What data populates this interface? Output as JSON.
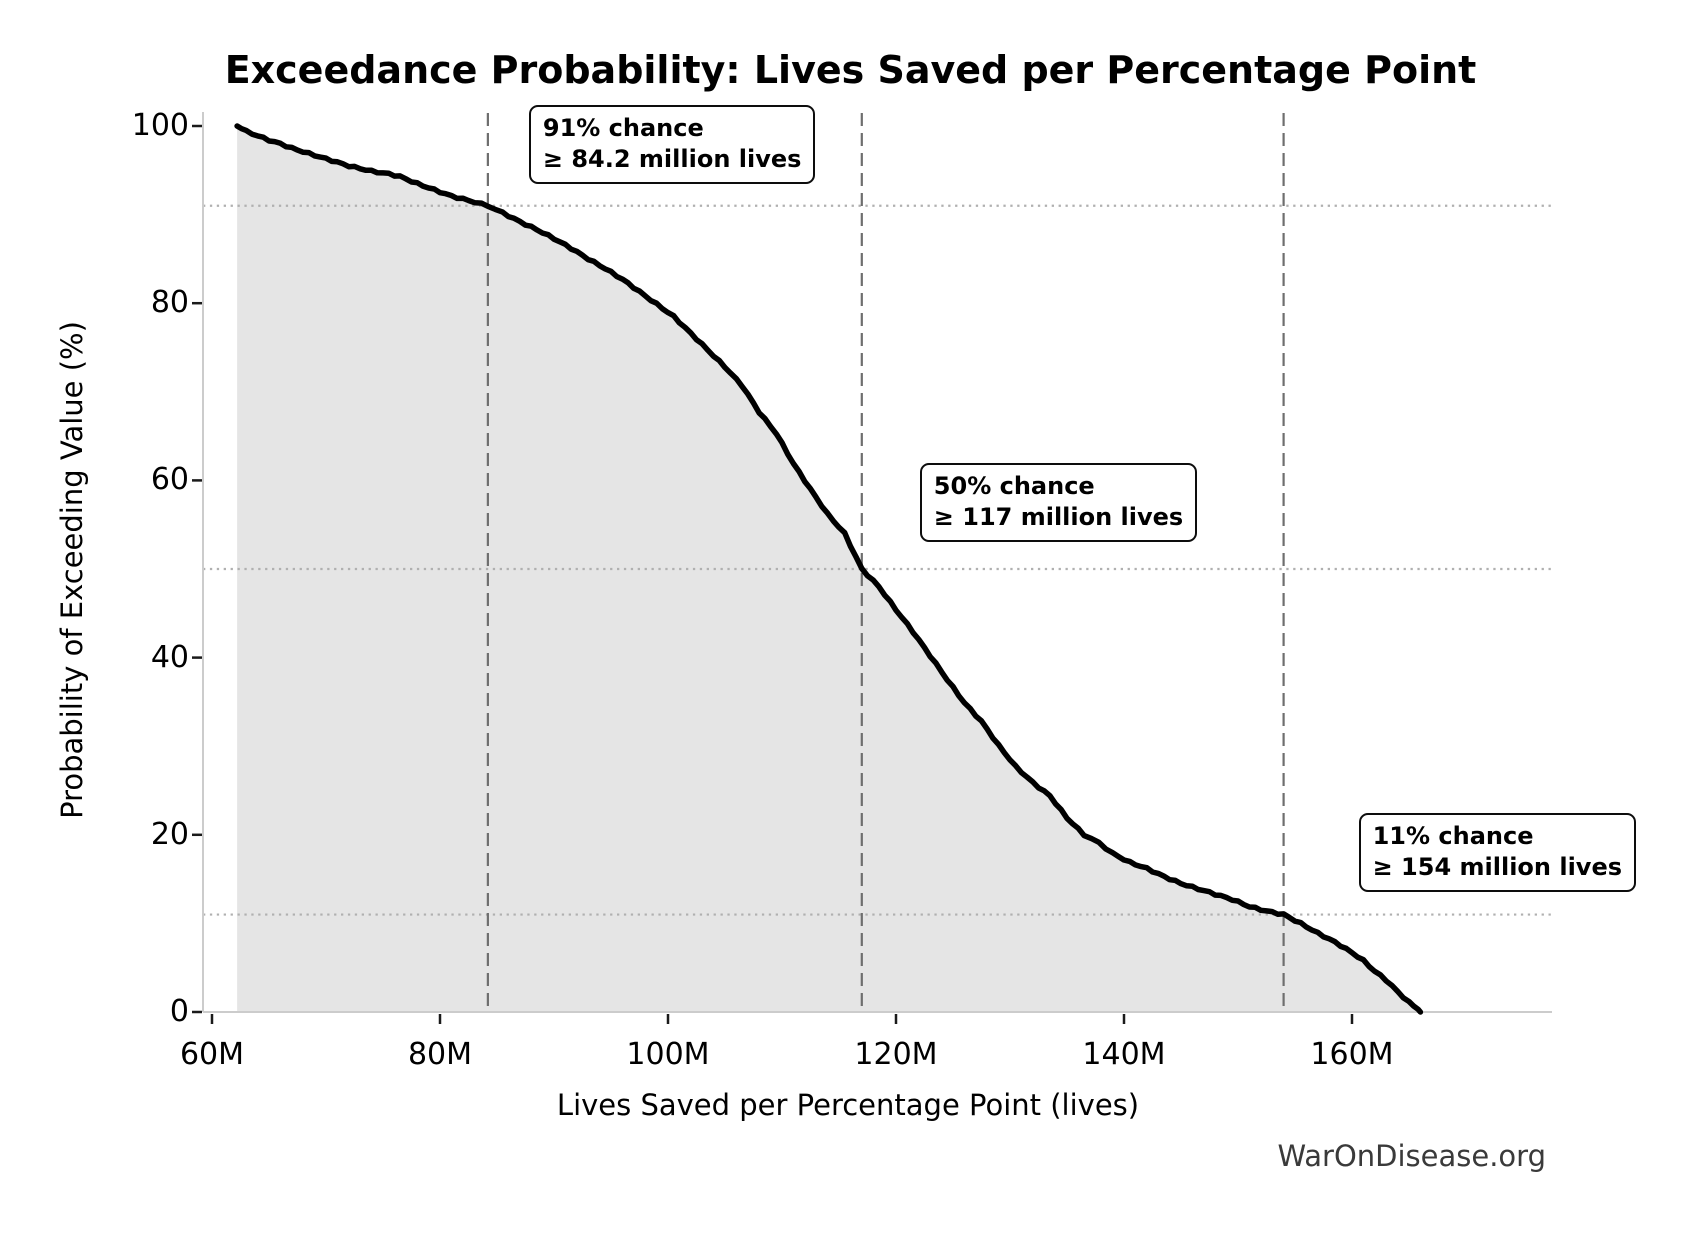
{
  "chart_data": {
    "type": "area",
    "title": "Exceedance Probability: Lives Saved per Percentage Point",
    "xlabel": "Lives Saved per Percentage Point (lives)",
    "ylabel": "Probability of Exceeding Value (%)",
    "watermark": "WarOnDisease.org",
    "xlim_millions": [
      59.2,
      177.5
    ],
    "ylim_percent": [
      0,
      101.6
    ],
    "x_ticks": [
      {
        "value": 60,
        "label": "60M"
      },
      {
        "value": 80,
        "label": "80M"
      },
      {
        "value": 100,
        "label": "100M"
      },
      {
        "value": 120,
        "label": "120M"
      },
      {
        "value": 140,
        "label": "140M"
      },
      {
        "value": 160,
        "label": "160M"
      }
    ],
    "y_ticks": [
      {
        "value": 0,
        "label": "0"
      },
      {
        "value": 20,
        "label": "20"
      },
      {
        "value": 40,
        "label": "40"
      },
      {
        "value": 60,
        "label": "60"
      },
      {
        "value": 80,
        "label": "80"
      },
      {
        "value": 100,
        "label": "100"
      }
    ],
    "grid": {
      "h_dotted_percent": [
        91,
        50,
        11
      ],
      "v_dashed_millions": [
        84.2,
        117,
        154
      ],
      "grid_default": "off",
      "legend": "none"
    },
    "series": [
      {
        "name": "Exceedance probability curve",
        "x_millions": [
          62.2,
          63,
          64,
          65,
          66,
          67,
          68,
          69,
          70,
          71,
          72,
          73,
          74,
          75.5,
          76.5,
          78,
          79.5,
          81,
          82.5,
          84.2,
          85.5,
          87,
          88.5,
          90,
          91.5,
          93,
          94.5,
          96,
          97.5,
          99,
          100.5,
          102,
          103.5,
          105,
          106.5,
          108,
          109.5,
          111,
          112.5,
          114,
          115.5,
          117,
          118.5,
          120,
          121.5,
          123,
          124.5,
          126,
          127.5,
          129,
          130.5,
          132,
          133.5,
          135,
          136.5,
          137.8,
          139,
          140.5,
          142,
          143.5,
          145,
          146.5,
          148,
          149.5,
          151,
          152.5,
          154,
          155.5,
          157,
          158.5,
          160,
          161,
          162,
          163,
          164,
          165,
          165.8,
          166
        ],
        "y_percent": [
          100,
          99.4,
          98.9,
          98.4,
          98,
          97.5,
          97.1,
          96.7,
          96.3,
          95.9,
          95.5,
          95.2,
          94.9,
          94.6,
          94.3,
          93.5,
          92.8,
          92.1,
          91.6,
          91,
          90.2,
          89.2,
          88.3,
          87.3,
          86.2,
          85,
          83.9,
          82.7,
          81.3,
          79.9,
          78.5,
          76.6,
          74.7,
          72.8,
          70.7,
          67.7,
          65.3,
          61.9,
          59,
          56.2,
          54,
          50,
          48,
          45.4,
          42.9,
          40.2,
          37.5,
          34.9,
          32.8,
          30.1,
          27.7,
          25.9,
          24.4,
          21.9,
          20,
          19.1,
          17.9,
          16.9,
          16.2,
          15.3,
          14.5,
          13.9,
          13.3,
          12.7,
          11.9,
          11.4,
          11,
          10,
          8.9,
          7.9,
          6.7,
          5.8,
          4.6,
          3.6,
          2.3,
          1.1,
          0.3,
          0
        ]
      }
    ],
    "annotations": [
      {
        "line1": "91% chance",
        "line2": "≥ 84.2 million lives",
        "anchor_million": 84.2,
        "anchor_percent": 91
      },
      {
        "line1": "50% chance",
        "line2": "≥ 117 million lives",
        "anchor_million": 117,
        "anchor_percent": 50
      },
      {
        "line1": "11% chance",
        "line2": "≥ 154 million lives",
        "anchor_million": 154,
        "anchor_percent": 11
      }
    ],
    "colors": {
      "curve": "#000000",
      "fill": "#e5e5e5",
      "dashed_line": "#6e6e6e",
      "dotted_line": "#b0b0b0",
      "spine": "#cccccc",
      "tick_mark": "#1a1a1a",
      "text": "#000000",
      "watermark": "#3a3a3a",
      "background": "#ffffff"
    }
  }
}
